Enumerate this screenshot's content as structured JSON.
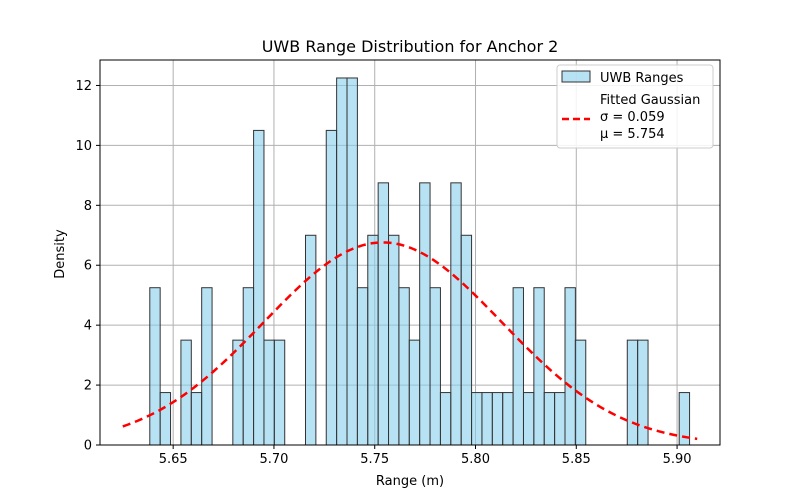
{
  "chart_data": {
    "type": "bar",
    "title": "UWB Range Distribution for Anchor 2",
    "xlabel": "Range (m)",
    "ylabel": "Density",
    "xlim": [
      5.6137,
      5.9213
    ],
    "ylim": [
      0,
      12.85
    ],
    "x_ticks": [
      "5.65",
      "5.70",
      "5.75",
      "5.80",
      "5.85",
      "5.90"
    ],
    "x_tick_values": [
      5.65,
      5.7,
      5.75,
      5.8,
      5.85,
      5.9
    ],
    "y_ticks": [
      "0",
      "2",
      "4",
      "6",
      "8",
      "10",
      "12"
    ],
    "y_tick_values": [
      0,
      2,
      4,
      6,
      8,
      10,
      12
    ],
    "grid": true,
    "legend_position": "top-right",
    "histogram": {
      "name": "UWB Ranges",
      "color": "#87CEEB",
      "edge_color": "#333333",
      "bin_start": 5.6384,
      "bin_width": 0.00515,
      "values": [
        5.25,
        1.75,
        0,
        3.5,
        1.75,
        5.25,
        0,
        0,
        3.5,
        5.25,
        10.5,
        3.5,
        3.5,
        0,
        0,
        7.0,
        0,
        10.5,
        12.25,
        12.25,
        5.25,
        7.0,
        8.75,
        7.0,
        5.25,
        3.5,
        8.75,
        5.25,
        1.75,
        8.75,
        7.0,
        1.75,
        1.75,
        1.75,
        1.75,
        5.25,
        1.75,
        5.25,
        1.75,
        1.75,
        5.25,
        3.5,
        0,
        0,
        0,
        0,
        3.5,
        3.5,
        0,
        0,
        0,
        1.75
      ]
    },
    "gaussian": {
      "name": "Fitted Gaussian",
      "legend_lines": [
        "Fitted Gaussian",
        "σ = 0.059",
        "μ = 5.754"
      ],
      "mu": 5.754,
      "sigma": 0.059,
      "x_range": [
        5.625,
        5.91
      ],
      "color": "#FF0000"
    }
  },
  "colors": {
    "grid": "#b0b0b0",
    "axis": "#000000"
  }
}
